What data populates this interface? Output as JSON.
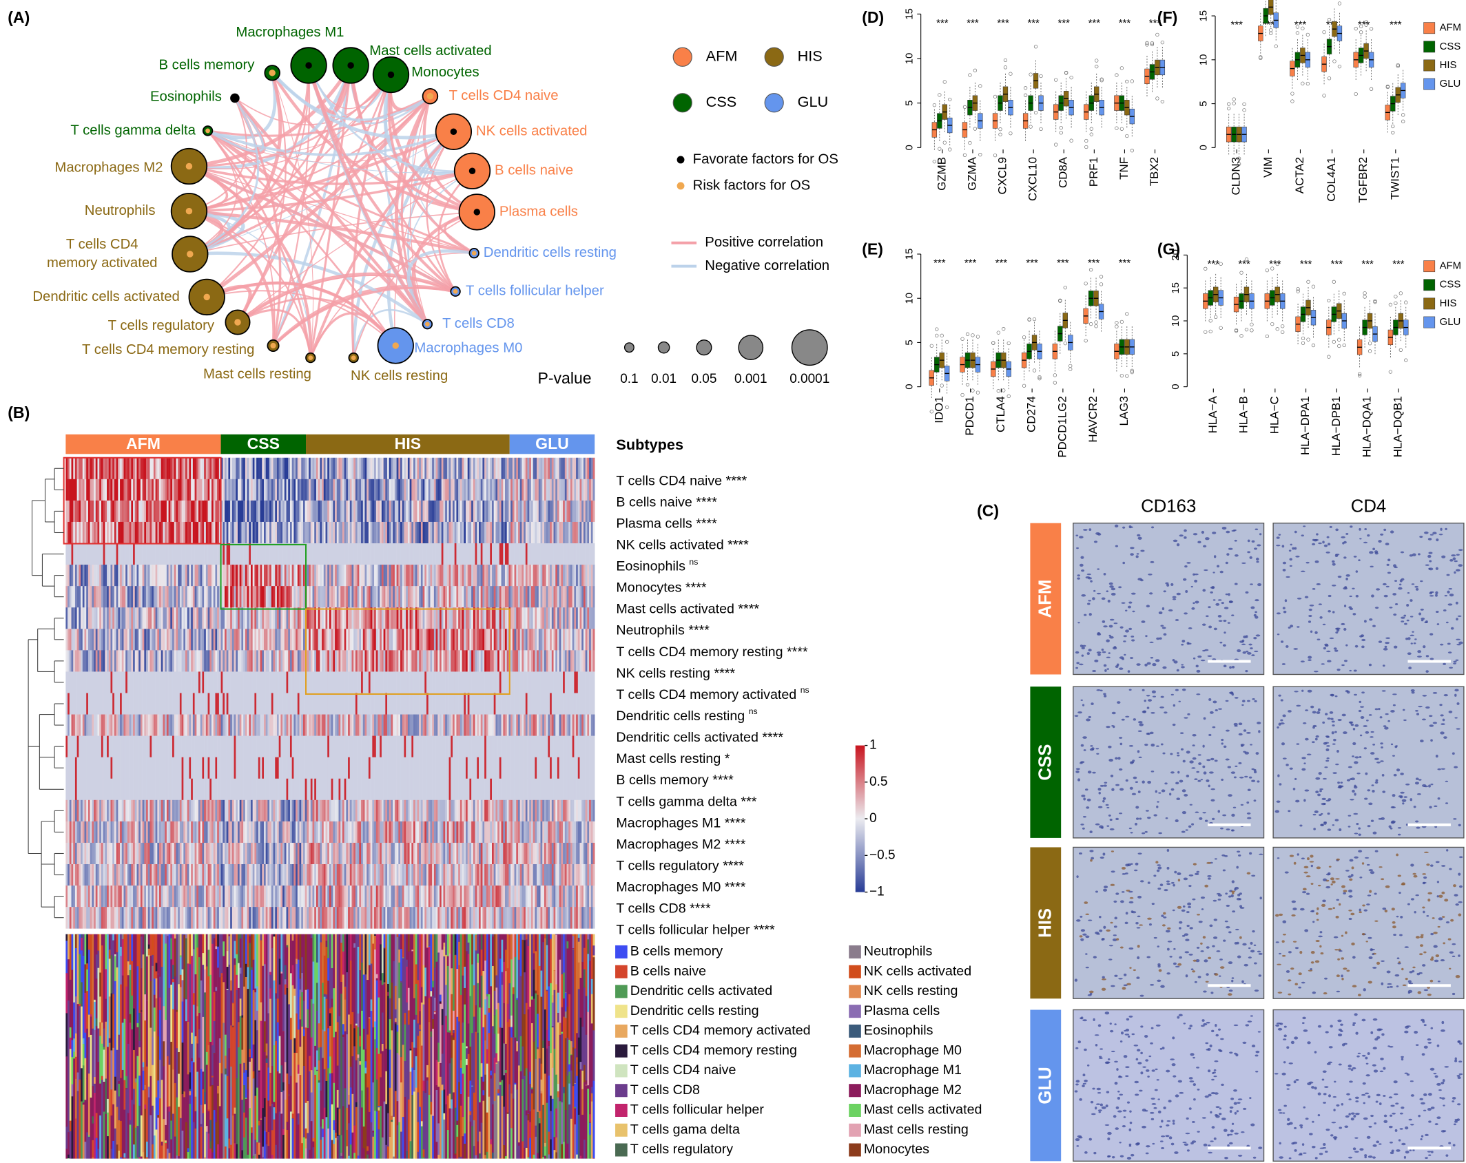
{
  "panel_labels": {
    "A": "(A)",
    "B": "(B)",
    "C": "(C)",
    "D": "(D)",
    "E": "(E)",
    "F": "(F)",
    "G": "(G)"
  },
  "subtypes": [
    {
      "name": "AFM",
      "color": "#f98048"
    },
    {
      "name": "CSS",
      "color": "#006400"
    },
    {
      "name": "HIS",
      "color": "#8b6914"
    },
    {
      "name": "GLU",
      "color": "#6495ed"
    }
  ],
  "network": {
    "factor_legend": [
      {
        "name": "Favorate factors for OS",
        "color": "#000000"
      },
      {
        "name": "Risk factors for OS",
        "color": "#f0a850"
      }
    ],
    "correlation_legend": [
      {
        "name": "Positive correlation",
        "color": "#f4a0a8"
      },
      {
        "name": "Negative correlation",
        "color": "#bcd2ea"
      }
    ],
    "pvalue_title": "P-value",
    "pvalue_sizes": [
      0.1,
      0.01,
      0.05,
      0.001,
      0.0001
    ],
    "nodes": [
      {
        "label": "T cells CD4 naive",
        "subtype": "AFM",
        "p": 0.05,
        "risk": true
      },
      {
        "label": "NK cells activated",
        "subtype": "AFM",
        "p": 0.0001,
        "risk": false
      },
      {
        "label": "B cells naive",
        "subtype": "AFM",
        "p": 0.0001,
        "risk": false
      },
      {
        "label": "Plasma cells",
        "subtype": "AFM",
        "p": 0.0001,
        "risk": false
      },
      {
        "label": "Dendritic cells resting",
        "subtype": "GLU",
        "p": 0.1,
        "risk": true
      },
      {
        "label": "T cells follicular helper",
        "subtype": "GLU",
        "p": 0.1,
        "risk": true
      },
      {
        "label": "T cells CD8",
        "subtype": "GLU",
        "p": 0.1,
        "risk": true
      },
      {
        "label": "Macrophages M0",
        "subtype": "GLU",
        "p": 0.0001,
        "risk": true
      },
      {
        "label": "NK cells resting",
        "subtype": "HIS",
        "p": 0.1,
        "risk": true
      },
      {
        "label": "Mast cells resting",
        "subtype": "HIS",
        "p": 0.1,
        "risk": true
      },
      {
        "label": "T cells CD4 memory resting",
        "subtype": "HIS",
        "p": 0.01,
        "risk": true
      },
      {
        "label": "T cells regulatory",
        "subtype": "HIS",
        "p": 0.001,
        "risk": true
      },
      {
        "label": "Dendritic cells activated",
        "subtype": "HIS",
        "p": 0.0001,
        "risk": true
      },
      {
        "label": [
          "T cells CD4",
          "memory activated"
        ],
        "subtype": "HIS",
        "p": 0.0001,
        "risk": true
      },
      {
        "label": "Neutrophils",
        "subtype": "HIS",
        "p": 0.0001,
        "risk": true
      },
      {
        "label": "Macrophages M2",
        "subtype": "HIS",
        "p": 0.0001,
        "risk": true
      },
      {
        "label": "T cells gamma delta",
        "subtype": "CSS",
        "p": 0.1,
        "risk": true
      },
      {
        "label": "Eosinophils",
        "subtype": "CSS",
        "p": 0.1,
        "risk": false
      },
      {
        "label": "B cells memory",
        "subtype": "CSS",
        "p": 0.05,
        "risk": true
      },
      {
        "label": "Macrophages M1",
        "subtype": "CSS",
        "p": 0.0001,
        "risk": false
      },
      {
        "label": "Mast cells activated",
        "subtype": "CSS",
        "p": 0.0001,
        "risk": false
      },
      {
        "label": "Monocytes",
        "subtype": "CSS",
        "p": 0.0001,
        "risk": false
      }
    ]
  },
  "heatmap": {
    "legend_title": "Subtypes",
    "rows": [
      {
        "name": "T cells CD4 naive",
        "sig": "****"
      },
      {
        "name": "B cells naive",
        "sig": "****"
      },
      {
        "name": "Plasma cells",
        "sig": "****"
      },
      {
        "name": "NK cells activated",
        "sig": "****"
      },
      {
        "name": "Eosinophils",
        "sig": "ns"
      },
      {
        "name": "Monocytes",
        "sig": "****"
      },
      {
        "name": "Mast cells activated",
        "sig": "****"
      },
      {
        "name": "Neutrophils",
        "sig": "****"
      },
      {
        "name": "T cells CD4 memory resting",
        "sig": "****"
      },
      {
        "name": "NK cells resting",
        "sig": "****"
      },
      {
        "name": "T cells CD4 memory activated",
        "sig": "ns"
      },
      {
        "name": "Dendritic cells resting",
        "sig": "ns"
      },
      {
        "name": "Dendritic cells activated",
        "sig": "****"
      },
      {
        "name": "Mast cells resting",
        "sig": "*"
      },
      {
        "name": "B cells memory",
        "sig": "****"
      },
      {
        "name": "T cells gamma delta",
        "sig": "***"
      },
      {
        "name": "Macrophages M1",
        "sig": "****"
      },
      {
        "name": "Macrophages M2",
        "sig": "****"
      },
      {
        "name": "T cells regulatory",
        "sig": "****"
      },
      {
        "name": "Macrophages M0",
        "sig": "****"
      },
      {
        "name": "T cells CD8",
        "sig": "****"
      },
      {
        "name": "T cells follicular helper",
        "sig": "****"
      }
    ],
    "colorbar": {
      "lim": [
        -1,
        1
      ],
      "ticks": [
        1,
        0.5,
        0,
        {
          "value": -0.5,
          "label": "−0.5"
        },
        {
          "value": -1,
          "label": "−1"
        }
      ]
    },
    "composition_legend": [
      {
        "name": "B cells memory",
        "color": "#3d4cf2"
      },
      {
        "name": "B cells naive",
        "color": "#d4452b"
      },
      {
        "name": "Dendritic cells activated",
        "color": "#4f9a55"
      },
      {
        "name": "Dendritic cells resting",
        "color": "#efe38a"
      },
      {
        "name": "T cells CD4 memory activated",
        "color": "#e8a85f"
      },
      {
        "name": "T cells CD4 memory resting",
        "color": "#2a1a3c"
      },
      {
        "name": "T cells CD4 naive",
        "color": "#cfe4bf"
      },
      {
        "name": "T cells CD8",
        "color": "#6b3c8c"
      },
      {
        "name": "T cells follicular helper",
        "color": "#c2246c"
      },
      {
        "name": "T cells gama delta",
        "color": "#e8c26c"
      },
      {
        "name": "T cells regulatory",
        "color": "#4a6a52"
      },
      {
        "name": "Neutrophils",
        "color": "#8a7c8c"
      },
      {
        "name": "NK cells activated",
        "color": "#d14d1c"
      },
      {
        "name": "NK cells resting",
        "color": "#e28a52"
      },
      {
        "name": "Plasma cells",
        "color": "#8a6cb2"
      },
      {
        "name": "Eosinophils",
        "color": "#3b5b7b"
      },
      {
        "name": "Macrophage M0",
        "color": "#d46c32"
      },
      {
        "name": "Macrophage M1",
        "color": "#5cb2e2"
      },
      {
        "name": "Macrophage M2",
        "color": "#8c1c5c"
      },
      {
        "name": "Mast  cells activated",
        "color": "#6cd262"
      },
      {
        "name": "Mast  cells resting",
        "color": "#e2a2b2"
      },
      {
        "name": "Monocytes",
        "color": "#8c3c1c"
      }
    ]
  },
  "boxplots": [
    {
      "panel": "D",
      "ylim": [
        0,
        15
      ],
      "yticks": [
        0,
        5,
        10,
        15
      ],
      "legend": false,
      "genes": [
        "GZMB",
        "GZMA",
        "CXCL9",
        "CXCL10",
        "CD8A",
        "PRF1",
        "TNF",
        "TBX2"
      ],
      "sig": [
        "***",
        "***",
        "***",
        "***",
        "***",
        "***",
        "***",
        "***"
      ],
      "medians": [
        [
          2,
          3,
          4,
          2.5
        ],
        [
          2,
          4.5,
          5,
          3
        ],
        [
          3,
          5,
          6,
          4.5
        ],
        [
          3,
          5,
          7.5,
          5
        ],
        [
          4,
          5,
          5.5,
          4.5
        ],
        [
          4,
          5,
          6,
          4.5
        ],
        [
          5,
          5,
          4.5,
          3.5
        ],
        [
          8,
          8.5,
          9,
          9
        ]
      ]
    },
    {
      "panel": "E",
      "ylim": [
        0,
        15
      ],
      "yticks": [
        0,
        5,
        10,
        15
      ],
      "legend": false,
      "genes": [
        "IDO1",
        "PDCD1",
        "CTLA4",
        "CD274",
        "PDCD1LG2",
        "HAVCR2",
        "LAG3"
      ],
      "sig": [
        "***",
        "***",
        "***",
        "***",
        "***",
        "***",
        "***"
      ],
      "medians": [
        [
          1,
          2.5,
          3,
          1.5
        ],
        [
          2.5,
          3,
          3,
          2.5
        ],
        [
          2,
          3,
          3,
          2
        ],
        [
          3,
          4,
          5,
          4
        ],
        [
          4,
          6,
          7.5,
          5
        ],
        [
          8,
          10,
          10,
          8.5
        ],
        [
          4,
          4.5,
          4.5,
          4.5
        ]
      ]
    },
    {
      "panel": "F",
      "ylim": [
        0,
        15
      ],
      "yticks": [
        0,
        5,
        10,
        15
      ],
      "legend": true,
      "genes": [
        "CLDN3",
        "VIM",
        "ACTA2",
        "COL4A1",
        "TGFBR2",
        "TWIST1"
      ],
      "sig": [
        "***",
        "***",
        "***",
        "***",
        "***",
        "***"
      ],
      "medians": [
        [
          1.5,
          1.5,
          1.5,
          1.5
        ],
        [
          13,
          15,
          16,
          14.5
        ],
        [
          9,
          10,
          10.5,
          10
        ],
        [
          9.5,
          11.5,
          13.5,
          13
        ],
        [
          10,
          10.5,
          11,
          10
        ],
        [
          4,
          5,
          6,
          6.5
        ]
      ]
    },
    {
      "panel": "G",
      "ylim": [
        0,
        20
      ],
      "yticks": [
        0,
        5,
        10,
        15,
        20
      ],
      "legend": true,
      "genes": [
        "HLA−A",
        "HLA−B",
        "HLA−C",
        "HLA−DPA1",
        "HLA−DPB1",
        "HLA−DQA1",
        "HLA−DQB1"
      ],
      "sig": [
        "***",
        "***",
        "***",
        "***",
        "***",
        "***",
        "***"
      ],
      "medians": [
        [
          13,
          13.5,
          14,
          13.5
        ],
        [
          12.5,
          13,
          14,
          13
        ],
        [
          13,
          13.5,
          14,
          13
        ],
        [
          9.5,
          11,
          12,
          10.5
        ],
        [
          9,
          11,
          11.5,
          10
        ],
        [
          6,
          9,
          10,
          8
        ],
        [
          7.5,
          9,
          10,
          9
        ]
      ]
    }
  ],
  "ihc": {
    "columns": [
      "CD163",
      "CD4"
    ],
    "rows": [
      "AFM",
      "CSS",
      "HIS",
      "GLU"
    ]
  }
}
